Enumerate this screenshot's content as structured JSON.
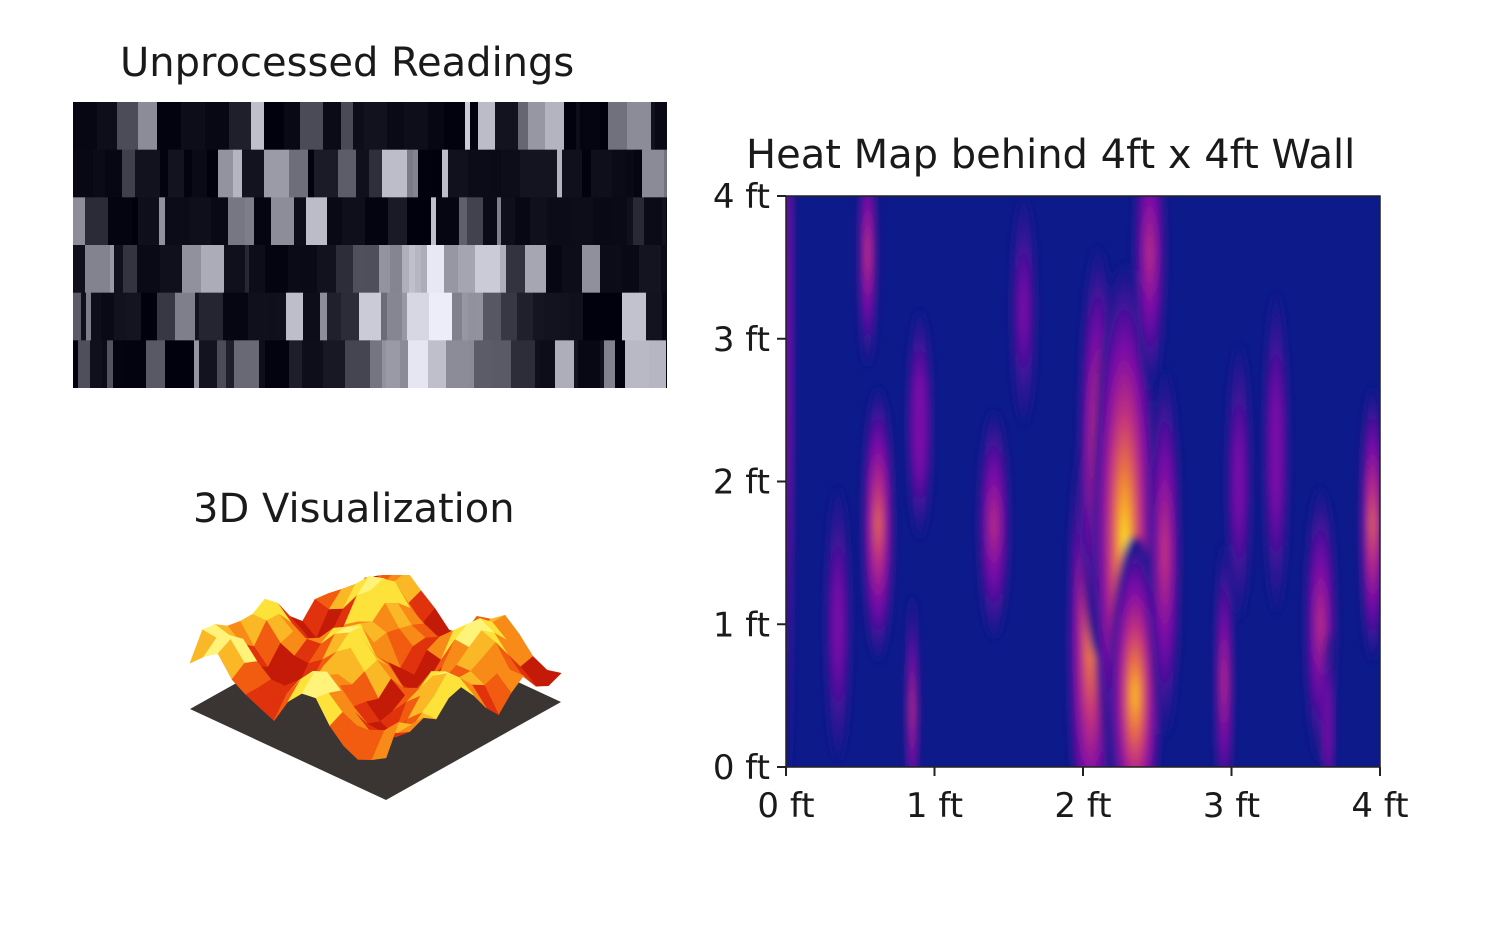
{
  "titles": {
    "raw": "Unprocessed Readings",
    "surface": "3D Visualization",
    "heatmap": "Heat Map behind 4ft x 4ft Wall"
  },
  "chart_data": [
    {
      "type": "heatmap",
      "title": "Unprocessed Readings",
      "rows": 6,
      "colormap": "gray",
      "xticks": [],
      "yticks": []
    },
    {
      "type": "surface",
      "title": "3D Visualization",
      "colormap": "hot"
    },
    {
      "type": "heatmap",
      "title": "Heat Map behind 4ft x 4ft Wall",
      "xlim": [
        0,
        4
      ],
      "ylim": [
        0,
        4
      ],
      "xticks": [
        0,
        1,
        2,
        3,
        4
      ],
      "xtick_labels": [
        "0 ft",
        "1 ft",
        "2 ft",
        "3 ft",
        "4 ft"
      ],
      "yticks": [
        0,
        1,
        2,
        3,
        4
      ],
      "ytick_labels": [
        "0 ft",
        "1 ft",
        "2 ft",
        "3 ft",
        "4 ft"
      ],
      "colormap": "plasma",
      "background_color": "#0d1a8a",
      "grid": false,
      "hotspots": [
        {
          "x": 0.01,
          "y": 3.0,
          "sx": 0.02,
          "sy": 2.0,
          "v": 0.45
        },
        {
          "x": 0.55,
          "y": 3.6,
          "sx": 0.03,
          "sy": 0.5,
          "v": 0.6
        },
        {
          "x": 0.62,
          "y": 1.7,
          "sx": 0.05,
          "sy": 0.6,
          "v": 0.75
        },
        {
          "x": 0.35,
          "y": 1.0,
          "sx": 0.04,
          "sy": 0.6,
          "v": 0.4
        },
        {
          "x": 0.85,
          "y": 0.4,
          "sx": 0.02,
          "sy": 0.5,
          "v": 0.6
        },
        {
          "x": 0.9,
          "y": 2.4,
          "sx": 0.04,
          "sy": 0.5,
          "v": 0.5
        },
        {
          "x": 1.4,
          "y": 1.7,
          "sx": 0.05,
          "sy": 0.5,
          "v": 0.55
        },
        {
          "x": 1.6,
          "y": 3.2,
          "sx": 0.04,
          "sy": 0.5,
          "v": 0.35
        },
        {
          "x": 2.05,
          "y": 0.9,
          "sx": 0.07,
          "sy": 1.0,
          "v": 0.85
        },
        {
          "x": 2.1,
          "y": 2.2,
          "sx": 0.06,
          "sy": 0.9,
          "v": 0.7
        },
        {
          "x": 2.28,
          "y": 1.6,
          "sx": 0.1,
          "sy": 1.2,
          "v": 1.0
        },
        {
          "x": 2.35,
          "y": 0.5,
          "sx": 0.08,
          "sy": 0.7,
          "v": 0.95
        },
        {
          "x": 2.45,
          "y": 3.6,
          "sx": 0.05,
          "sy": 0.6,
          "v": 0.55
        },
        {
          "x": 2.55,
          "y": 1.5,
          "sx": 0.05,
          "sy": 0.8,
          "v": 0.6
        },
        {
          "x": 2.95,
          "y": 0.6,
          "sx": 0.03,
          "sy": 0.6,
          "v": 0.55
        },
        {
          "x": 3.05,
          "y": 2.0,
          "sx": 0.04,
          "sy": 0.6,
          "v": 0.4
        },
        {
          "x": 3.3,
          "y": 2.2,
          "sx": 0.04,
          "sy": 0.7,
          "v": 0.45
        },
        {
          "x": 3.6,
          "y": 1.0,
          "sx": 0.05,
          "sy": 0.6,
          "v": 0.55
        },
        {
          "x": 3.65,
          "y": 0.3,
          "sx": 0.02,
          "sy": 0.4,
          "v": 0.5
        },
        {
          "x": 3.95,
          "y": 1.7,
          "sx": 0.04,
          "sy": 0.6,
          "v": 0.75
        }
      ]
    }
  ]
}
